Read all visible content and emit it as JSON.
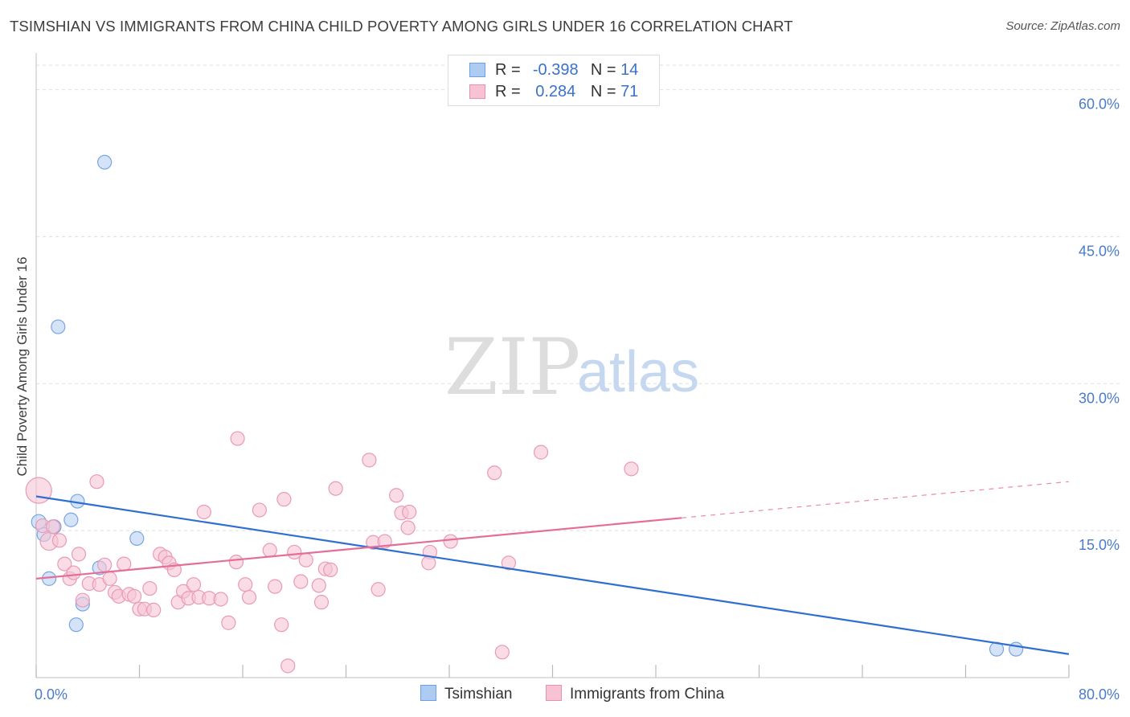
{
  "title": "TSIMSHIAN VS IMMIGRANTS FROM CHINA CHILD POVERTY AMONG GIRLS UNDER 16 CORRELATION CHART",
  "source": "Source: ZipAtlas.com",
  "watermark": {
    "zip": "ZIP",
    "atlas": "atlas"
  },
  "legend": {
    "r_label": "R =",
    "n_label": "N =",
    "rows": [
      {
        "series": "Tsimshian",
        "r": "-0.398",
        "n": "14",
        "fill": "#aecbf2",
        "stroke": "#6e9fe0"
      },
      {
        "series": "Immigrants from China",
        "r": "0.284",
        "n": "71",
        "fill": "#f7c3d4",
        "stroke": "#ea8fae"
      }
    ]
  },
  "bottom_legend": [
    "Tsimshian",
    "Immigrants from China"
  ],
  "colors": {
    "blue_point_fill": "#b8d1f3",
    "blue_point_stroke": "#7aa5e0",
    "blue_line": "#2f6fcf",
    "pink_point_fill": "#f6c5d5",
    "pink_point_stroke": "#e99ab5",
    "pink_line": "#e56d99",
    "grid": "#dddddd",
    "tick_label": "#4a7cc9"
  },
  "chart_data": {
    "type": "scatter",
    "title": "TSIMSHIAN VS IMMIGRANTS FROM CHINA CHILD POVERTY AMONG GIRLS UNDER 16 CORRELATION CHART",
    "xlabel": "",
    "ylabel": "Child Poverty Among Girls Under 16",
    "xlim": [
      0,
      80
    ],
    "ylim": [
      0,
      63
    ],
    "x_tick_labels": [
      {
        "value": 0,
        "label": "0.0%"
      },
      {
        "value": 80,
        "label": "80.0%"
      }
    ],
    "x_tick_marks": [
      0,
      8,
      16,
      24,
      32,
      40,
      48,
      56,
      64,
      72,
      80
    ],
    "y_ticks": [
      {
        "value": 15,
        "label": "15.0%"
      },
      {
        "value": 30,
        "label": "30.0%"
      },
      {
        "value": 45,
        "label": "45.0%"
      },
      {
        "value": 60,
        "label": "60.0%"
      }
    ],
    "series": [
      {
        "name": "Tsimshian",
        "color": "blue",
        "points": [
          {
            "x": 0.2,
            "y": 15.9
          },
          {
            "x": 0.6,
            "y": 14.6
          },
          {
            "x": 1.0,
            "y": 10.1
          },
          {
            "x": 1.4,
            "y": 15.4
          },
          {
            "x": 1.7,
            "y": 35.8
          },
          {
            "x": 2.7,
            "y": 16.1
          },
          {
            "x": 3.1,
            "y": 5.4
          },
          {
            "x": 3.2,
            "y": 18.0
          },
          {
            "x": 3.6,
            "y": 7.5
          },
          {
            "x": 4.9,
            "y": 11.2
          },
          {
            "x": 5.3,
            "y": 52.6
          },
          {
            "x": 7.8,
            "y": 14.2
          },
          {
            "x": 74.4,
            "y": 2.9
          },
          {
            "x": 75.9,
            "y": 2.9
          }
        ],
        "trend": {
          "x0": 0,
          "y0": 18.5,
          "x1": 80,
          "y1": 2.4
        }
      },
      {
        "name": "Immigrants from China",
        "color": "pink",
        "points": [
          {
            "x": 0.2,
            "y": 19.1
          },
          {
            "x": 0.5,
            "y": 15.5
          },
          {
            "x": 1.0,
            "y": 13.9
          },
          {
            "x": 1.3,
            "y": 15.4
          },
          {
            "x": 1.8,
            "y": 14.0
          },
          {
            "x": 2.2,
            "y": 11.6
          },
          {
            "x": 2.6,
            "y": 10.1
          },
          {
            "x": 2.9,
            "y": 10.7
          },
          {
            "x": 3.3,
            "y": 12.6
          },
          {
            "x": 3.6,
            "y": 7.9
          },
          {
            "x": 4.1,
            "y": 9.6
          },
          {
            "x": 4.7,
            "y": 20.0
          },
          {
            "x": 4.9,
            "y": 9.5
          },
          {
            "x": 5.3,
            "y": 11.5
          },
          {
            "x": 5.7,
            "y": 10.1
          },
          {
            "x": 6.1,
            "y": 8.7
          },
          {
            "x": 6.4,
            "y": 8.3
          },
          {
            "x": 6.8,
            "y": 11.6
          },
          {
            "x": 7.2,
            "y": 8.5
          },
          {
            "x": 7.6,
            "y": 8.3
          },
          {
            "x": 8.0,
            "y": 7.0
          },
          {
            "x": 8.4,
            "y": 7.0
          },
          {
            "x": 8.8,
            "y": 9.1
          },
          {
            "x": 9.1,
            "y": 6.9
          },
          {
            "x": 9.6,
            "y": 12.6
          },
          {
            "x": 10.0,
            "y": 12.3
          },
          {
            "x": 10.3,
            "y": 11.7
          },
          {
            "x": 10.7,
            "y": 11.0
          },
          {
            "x": 11.0,
            "y": 7.7
          },
          {
            "x": 11.4,
            "y": 8.8
          },
          {
            "x": 11.8,
            "y": 8.1
          },
          {
            "x": 12.2,
            "y": 9.5
          },
          {
            "x": 12.6,
            "y": 8.2
          },
          {
            "x": 13.0,
            "y": 16.9
          },
          {
            "x": 13.4,
            "y": 8.1
          },
          {
            "x": 14.3,
            "y": 8.0
          },
          {
            "x": 14.9,
            "y": 5.6
          },
          {
            "x": 15.5,
            "y": 11.8
          },
          {
            "x": 15.6,
            "y": 24.4
          },
          {
            "x": 16.2,
            "y": 9.5
          },
          {
            "x": 16.5,
            "y": 8.2
          },
          {
            "x": 17.3,
            "y": 17.1
          },
          {
            "x": 18.1,
            "y": 13.0
          },
          {
            "x": 18.5,
            "y": 9.3
          },
          {
            "x": 19.0,
            "y": 5.4
          },
          {
            "x": 19.2,
            "y": 18.2
          },
          {
            "x": 19.5,
            "y": 1.2
          },
          {
            "x": 20.0,
            "y": 12.8
          },
          {
            "x": 20.9,
            "y": 12.0
          },
          {
            "x": 21.9,
            "y": 9.4
          },
          {
            "x": 22.1,
            "y": 7.7
          },
          {
            "x": 22.4,
            "y": 11.1
          },
          {
            "x": 22.8,
            "y": 11.0
          },
          {
            "x": 23.2,
            "y": 19.3
          },
          {
            "x": 25.8,
            "y": 22.2
          },
          {
            "x": 26.1,
            "y": 13.8
          },
          {
            "x": 26.5,
            "y": 9.0
          },
          {
            "x": 27.0,
            "y": 13.9
          },
          {
            "x": 27.9,
            "y": 18.6
          },
          {
            "x": 28.3,
            "y": 16.8
          },
          {
            "x": 28.9,
            "y": 16.9
          },
          {
            "x": 28.8,
            "y": 15.3
          },
          {
            "x": 30.5,
            "y": 12.8
          },
          {
            "x": 30.4,
            "y": 11.7
          },
          {
            "x": 32.1,
            "y": 13.9
          },
          {
            "x": 35.5,
            "y": 20.9
          },
          {
            "x": 36.1,
            "y": 2.6
          },
          {
            "x": 36.6,
            "y": 11.7
          },
          {
            "x": 39.1,
            "y": 23.0
          },
          {
            "x": 46.1,
            "y": 21.3
          },
          {
            "x": 20.5,
            "y": 9.8
          }
        ],
        "trend": {
          "x0": 0,
          "y0": 10.1,
          "x1": 50,
          "y1": 16.3,
          "dash_to_x": 80,
          "dash_to_y": 20.0
        }
      }
    ]
  }
}
